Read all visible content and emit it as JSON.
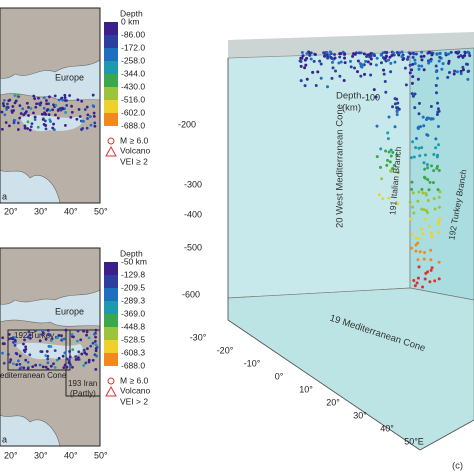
{
  "panel_a": {
    "region": "Europe",
    "corner_text": "a",
    "lon_labels": [
      "20°",
      "30°",
      "40°",
      "50°"
    ],
    "legend": {
      "title": "Depth",
      "levels": [
        "0  km",
        "-86.00",
        "-172.0",
        "-258.0",
        "-344.0",
        "-430.0",
        "-516.0",
        "-602.0",
        "-688.0"
      ],
      "magnitude": "M ≥ 6.0",
      "volcano": "Volcano",
      "vei": "VEI ≥ 2"
    }
  },
  "panel_b": {
    "region": "Europe",
    "corner_text": "a",
    "zones": [
      "192-Turkey",
      "editerranean Cone",
      "193 Iran",
      "(Partly)"
    ],
    "lon_labels": [
      "20°",
      "30°",
      "40°",
      "50°"
    ],
    "legend": {
      "title": "Depth",
      "levels": [
        "-50 km",
        "-129.8",
        "-209.5",
        "-289.3",
        "-369.0",
        "-448.8",
        "-528.5",
        "-608.3",
        "-688.0"
      ],
      "magnitude": "M ≥ 6.0",
      "volcano": "Volcano",
      "vei": "VEI > 2"
    }
  },
  "panel_c": {
    "axis_title": [
      "Depth.",
      "(km)"
    ],
    "depth_ticks": [
      "-100",
      "-200",
      "-300",
      "-400",
      "-500",
      "-600"
    ],
    "lon_ticks": [
      "-30°",
      "-20°",
      "-10°",
      "0°",
      "10°",
      "20°",
      "30°",
      "40°",
      "50°E"
    ],
    "zones": [
      "20 West Mediterranean Cone",
      "191 Italian Branch",
      "192 Turkey Branch",
      "19 Mediterranean Cone"
    ],
    "panel_label": "(c)"
  }
}
